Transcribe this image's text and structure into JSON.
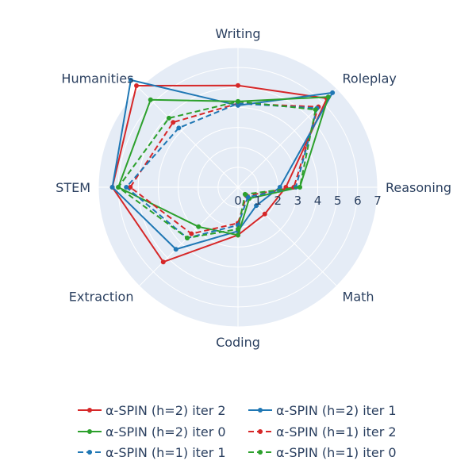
{
  "chart_data": {
    "type": "radar",
    "title": "",
    "axes": [
      "Writing",
      "Roleplay",
      "Reasoning",
      "Math",
      "Coding",
      "Extraction",
      "STEM",
      "Humanities"
    ],
    "radial_range": [
      0,
      7
    ],
    "radial_ticks": [
      "0",
      "1",
      "2",
      "3",
      "4",
      "5",
      "6",
      "7"
    ],
    "background_color": "#e5ecf6",
    "grid": true,
    "legend_position": "bottom",
    "series": [
      {
        "name": "α-SPIN (h=2) iter 2",
        "color": "#d62728",
        "dash": "solid",
        "values": [
          5.1,
          6.3,
          2.4,
          1.9,
          2.4,
          5.3,
          6.3,
          7.2
        ]
      },
      {
        "name": "α-SPIN (h=2) iter 1",
        "color": "#1f77b4",
        "dash": "solid",
        "values": [
          4.1,
          6.7,
          2.1,
          1.3,
          2.2,
          4.4,
          6.3,
          7.6
        ]
      },
      {
        "name": "α-SPIN (h=2) iter 0",
        "color": "#2ca02c",
        "dash": "solid",
        "values": [
          4.3,
          6.4,
          3.1,
          0.8,
          2.4,
          2.8,
          6.0,
          6.2
        ]
      },
      {
        "name": "α-SPIN (h=1) iter 2",
        "color": "#d62728",
        "dash": "dash",
        "values": [
          4.2,
          5.7,
          2.8,
          0.6,
          1.8,
          3.3,
          5.4,
          4.6
        ]
      },
      {
        "name": "α-SPIN (h=1) iter 1",
        "color": "#1f77b4",
        "dash": "dash",
        "values": [
          4.2,
          5.6,
          2.9,
          0.7,
          1.9,
          3.6,
          5.6,
          4.2
        ]
      },
      {
        "name": "α-SPIN (h=1) iter 0",
        "color": "#2ca02c",
        "dash": "dash",
        "values": [
          4.3,
          5.5,
          3.1,
          0.5,
          2.1,
          3.6,
          6.0,
          4.9
        ]
      }
    ]
  }
}
